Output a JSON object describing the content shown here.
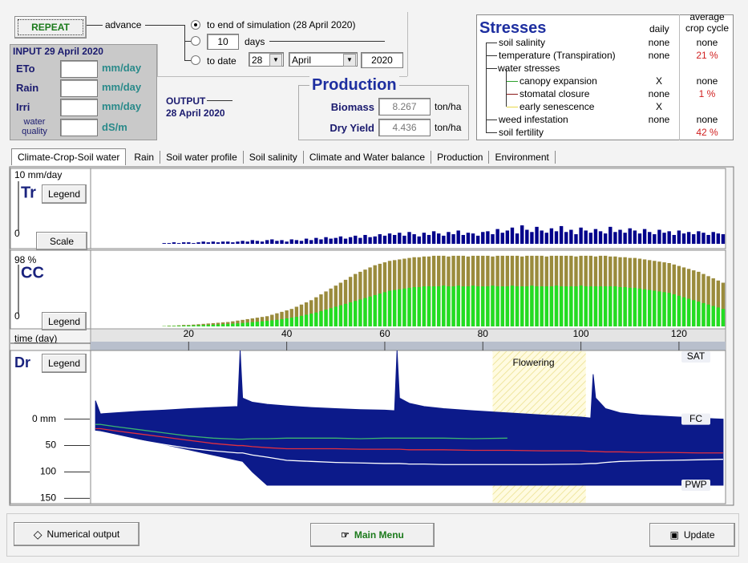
{
  "controls": {
    "repeat": "REPEAT",
    "advance": "advance",
    "options": [
      {
        "label": "to end of simulation (28 April 2020)"
      },
      {
        "value": "10",
        "label": "days"
      },
      {
        "label": "to date",
        "day": "28",
        "month": "April",
        "year": "2020"
      }
    ]
  },
  "input": {
    "title": "INPUT 29 April 2020",
    "rows": [
      {
        "label": "ETo",
        "unit": "mm/day"
      },
      {
        "label": "Rain",
        "unit": "mm/day"
      },
      {
        "label": "Irri",
        "unit": "mm/day"
      },
      {
        "label": "water quality",
        "unit": "dS/m"
      }
    ]
  },
  "output": {
    "title": "OUTPUT",
    "date": "28 April 2020"
  },
  "production": {
    "title": "Production",
    "rows": [
      {
        "label": "Biomass",
        "value": "8.267",
        "unit": "ton/ha"
      },
      {
        "label": "Dry Yield",
        "value": "4.436",
        "unit": "ton/ha"
      }
    ]
  },
  "stresses": {
    "title": "Stresses",
    "columns": [
      "daily",
      "average crop cycle"
    ],
    "rows": [
      {
        "label": "soil salinity",
        "daily": "none",
        "average": "none"
      },
      {
        "label": "temperature (Transpiration)",
        "daily": "none",
        "average": "21 %"
      },
      {
        "label": "water stresses"
      },
      {
        "label": "canopy expansion",
        "daily": "X",
        "average": "none"
      },
      {
        "label": "stomatal closure",
        "daily": "none",
        "average": "1 %"
      },
      {
        "label": "early senescence",
        "daily": "X"
      },
      {
        "label": "weed infestation",
        "daily": "none",
        "average": "none"
      },
      {
        "label": "soil fertility",
        "average": "42 %"
      }
    ]
  },
  "tabs": [
    "Climate-Crop-Soil water",
    "Rain",
    "Soil water profile",
    "Soil salinity",
    "Climate and Water balance",
    "Production",
    "Environment"
  ],
  "chart_data": [
    {
      "type": "bar",
      "title": "Tr",
      "legend_button": "Legend",
      "scale_button": "Scale",
      "x": [
        1,
        2,
        3,
        4,
        5,
        6,
        7,
        8,
        9,
        10,
        11,
        12,
        13,
        14,
        15,
        16,
        17,
        18,
        19,
        20,
        21,
        22,
        23,
        24,
        25,
        26,
        27,
        28,
        29,
        30,
        31,
        32,
        33,
        34,
        35,
        36,
        37,
        38,
        39,
        40,
        41,
        42,
        43,
        44,
        45,
        46,
        47,
        48,
        49,
        50,
        51,
        52,
        53,
        54,
        55,
        56,
        57,
        58,
        59,
        60,
        61,
        62,
        63,
        64,
        65,
        66,
        67,
        68,
        69,
        70,
        71,
        72,
        73,
        74,
        75,
        76,
        77,
        78,
        79,
        80,
        81,
        82,
        83,
        84,
        85,
        86,
        87,
        88,
        89,
        90,
        91,
        92,
        93,
        94,
        95,
        96,
        97,
        98,
        99,
        100,
        101,
        102,
        103,
        104,
        105,
        106,
        107,
        108,
        109,
        110,
        111,
        112,
        113,
        114,
        115,
        116,
        117,
        118,
        119,
        120,
        121,
        122,
        123,
        124,
        125,
        126,
        127,
        128,
        129
      ],
      "series": [
        {
          "color": "#00008b",
          "values": [
            0,
            0,
            0,
            0,
            0,
            0,
            0,
            0,
            0,
            0,
            0,
            0,
            0,
            0,
            0.1,
            0.1,
            0.2,
            0.1,
            0.2,
            0.2,
            0.1,
            0.2,
            0.3,
            0.2,
            0.3,
            0.2,
            0.3,
            0.3,
            0.2,
            0.3,
            0.4,
            0.3,
            0.5,
            0.4,
            0.3,
            0.5,
            0.6,
            0.4,
            0.5,
            0.3,
            0.6,
            0.5,
            0.4,
            0.7,
            0.5,
            0.8,
            0.6,
            0.9,
            0.7,
            0.8,
            1.0,
            0.7,
            0.9,
            1.1,
            0.8,
            1.2,
            0.9,
            1.0,
            1.3,
            1.1,
            1.4,
            1.2,
            1.5,
            1.1,
            1.6,
            1.3,
            1.0,
            1.5,
            1.2,
            1.7,
            1.4,
            1.1,
            1.6,
            1.3,
            1.8,
            1.2,
            1.5,
            1.4,
            1.1,
            1.6,
            1.7,
            1.3,
            2.0,
            1.5,
            1.8,
            2.2,
            1.4,
            2.5,
            1.9,
            1.6,
            2.3,
            1.8,
            1.5,
            2.1,
            1.7,
            2.4,
            1.6,
            1.9,
            1.3,
            2.2,
            1.8,
            1.5,
            2.0,
            1.7,
            1.4,
            2.3,
            1.6,
            1.9,
            1.5,
            2.1,
            1.8,
            1.4,
            2.0,
            1.6,
            1.3,
            1.9,
            1.5,
            1.7,
            1.2,
            1.8,
            1.4,
            1.6,
            1.3,
            1.7,
            1.5,
            1.2,
            1.6,
            1.4,
            1.3
          ]
        }
      ],
      "xlim": [
        0,
        129.5
      ],
      "ylim": [
        0,
        10
      ],
      "yticks": [
        0,
        {
          "value": 10,
          "label": "10 mm/day"
        }
      ]
    },
    {
      "type": "bar",
      "title": "CC",
      "legend_button": "Legend",
      "xlabel": "time (day)",
      "x": [
        1,
        2,
        3,
        4,
        5,
        6,
        7,
        8,
        9,
        10,
        11,
        12,
        13,
        14,
        15,
        16,
        17,
        18,
        19,
        20,
        21,
        22,
        23,
        24,
        25,
        26,
        27,
        28,
        29,
        30,
        31,
        32,
        33,
        34,
        35,
        36,
        37,
        38,
        39,
        40,
        41,
        42,
        43,
        44,
        45,
        46,
        47,
        48,
        49,
        50,
        51,
        52,
        53,
        54,
        55,
        56,
        57,
        58,
        59,
        60,
        61,
        62,
        63,
        64,
        65,
        66,
        67,
        68,
        69,
        70,
        71,
        72,
        73,
        74,
        75,
        76,
        77,
        78,
        79,
        80,
        81,
        82,
        83,
        84,
        85,
        86,
        87,
        88,
        89,
        90,
        91,
        92,
        93,
        94,
        95,
        96,
        97,
        98,
        99,
        100,
        101,
        102,
        103,
        104,
        105,
        106,
        107,
        108,
        109,
        110,
        111,
        112,
        113,
        114,
        115,
        116,
        117,
        118,
        119,
        120,
        121,
        122,
        123,
        124,
        125,
        126,
        127,
        128,
        129
      ],
      "series": [
        {
          "color": "#9a8b3c",
          "values": [
            0,
            0,
            0,
            0,
            0,
            0,
            0,
            0,
            0,
            0,
            0,
            0,
            0,
            0,
            0.5,
            1,
            1,
            1.5,
            2,
            2,
            2.5,
            3,
            3.5,
            4,
            4.5,
            5,
            5.5,
            6,
            7,
            8,
            9,
            10,
            11,
            12,
            13,
            14,
            16,
            18,
            20,
            22,
            24,
            27,
            30,
            33,
            36,
            40,
            44,
            48,
            52,
            56,
            60,
            64,
            68,
            72,
            75,
            78,
            81,
            84,
            86,
            88,
            90,
            91,
            92,
            93,
            94,
            95,
            95,
            96,
            96,
            97,
            97,
            97,
            96,
            97,
            97,
            97,
            96,
            97,
            97,
            97,
            97,
            96,
            97,
            97,
            97,
            97,
            97,
            96,
            97,
            97,
            97,
            97,
            96,
            97,
            97,
            97,
            97,
            97,
            96,
            97,
            97,
            97,
            96,
            97,
            97,
            96,
            96,
            95,
            95,
            94,
            94,
            93,
            92,
            91,
            90,
            89,
            88,
            87,
            85,
            83,
            81,
            79,
            77,
            75,
            72,
            69,
            66,
            63,
            60
          ]
        },
        {
          "color": "#22dd22",
          "values": [
            0,
            0,
            0,
            0,
            0,
            0,
            0,
            0,
            0,
            0,
            0,
            0,
            0,
            0,
            0.3,
            0.5,
            0.6,
            0.8,
            1,
            1.2,
            1.4,
            1.6,
            1.8,
            2,
            2.3,
            2.6,
            3,
            3.4,
            3.8,
            4.2,
            4.7,
            5.2,
            5.8,
            6.4,
            7,
            7.6,
            8.3,
            9,
            10,
            11,
            12,
            13,
            14.5,
            16,
            17.5,
            19,
            21,
            23,
            25,
            27,
            29,
            31,
            33,
            35,
            37,
            39,
            41,
            43,
            45,
            47,
            49,
            50,
            51,
            52,
            53,
            54,
            54,
            55,
            55,
            55,
            55,
            56,
            55,
            55,
            56,
            55,
            55,
            56,
            55,
            55,
            55,
            56,
            55,
            55,
            55,
            56,
            55,
            55,
            55,
            56,
            55,
            55,
            55,
            55,
            56,
            55,
            55,
            55,
            55,
            56,
            55,
            55,
            55,
            55,
            55,
            55,
            55,
            54,
            54,
            53,
            53,
            52,
            51,
            50,
            49,
            48,
            47,
            46,
            44,
            42,
            40,
            38,
            36,
            34,
            32,
            30,
            28,
            26,
            24
          ]
        }
      ],
      "xlim": [
        0,
        129.5
      ],
      "xticks": [
        20,
        40,
        60,
        80,
        100,
        120
      ],
      "ylim": [
        0,
        98
      ],
      "yticks": [
        0,
        {
          "value": 98,
          "label": "98 %"
        }
      ]
    },
    {
      "type": "area",
      "title": "Dr",
      "legend_button": "Legend",
      "x": [
        1,
        2,
        5,
        10,
        15,
        20,
        25,
        30,
        30.5,
        31,
        33,
        36,
        40,
        45,
        50,
        55,
        60,
        62,
        62.5,
        63,
        65,
        68,
        72,
        78,
        85,
        92,
        100,
        102,
        102.5,
        103,
        105,
        108,
        112,
        118,
        124,
        129
      ],
      "series": [
        {
          "type": "area",
          "color": "#0c1a8a",
          "values": [
            -35,
            -10,
            -12,
            -15,
            -17,
            -20,
            -22,
            -24,
            -130,
            -40,
            -32,
            -28,
            -25,
            -22,
            -20,
            -18,
            -17,
            -16,
            -130,
            -40,
            -30,
            -24,
            -20,
            -16,
            -12,
            -8,
            -4,
            -2,
            -85,
            -40,
            -20,
            -12,
            -8,
            -5,
            -2,
            0
          ]
        },
        {
          "type": "area",
          "color": "#0c1a8a",
          "values": [
            21,
            22,
            28,
            38,
            48,
            58,
            68,
            78,
            79,
            80,
            100,
            125,
            125,
            125,
            125,
            125,
            125,
            125,
            125,
            125,
            125,
            125,
            125,
            125,
            125,
            125,
            125,
            125,
            125,
            125,
            125,
            125,
            125,
            125,
            125,
            125
          ]
        },
        {
          "type": "line",
          "color": "#3cb371",
          "values": [
            10,
            10,
            14,
            20,
            26,
            32,
            36,
            38,
            38,
            38,
            37,
            37,
            36,
            36,
            36,
            37,
            36,
            36,
            36,
            36,
            36,
            36,
            36,
            37,
            36,
            null,
            null,
            null,
            null,
            null,
            null,
            null,
            null,
            null,
            null,
            null
          ]
        },
        {
          "type": "line",
          "color": "#e03040",
          "values": [
            18,
            18,
            22,
            28,
            34,
            40,
            46,
            50,
            50,
            50,
            52,
            54,
            56,
            56,
            56,
            57,
            57,
            57,
            57,
            57,
            58,
            58,
            58,
            59,
            59,
            60,
            60,
            61,
            61,
            61,
            62,
            62,
            63,
            63,
            64,
            64
          ]
        },
        {
          "type": "line",
          "color": "#ffffff",
          "values": [
            26,
            26,
            32,
            40,
            48,
            55,
            60,
            64,
            64,
            64,
            68,
            72,
            78,
            80,
            82,
            83,
            84,
            84,
            84,
            84,
            85,
            85,
            86,
            86,
            86,
            86,
            85,
            84,
            84,
            84,
            82,
            80,
            79,
            78,
            77,
            76
          ]
        }
      ],
      "levels": [
        {
          "label": "SAT",
          "value": -130
        },
        {
          "label": "FC",
          "value": 0
        },
        {
          "label": "PWP",
          "value": 125
        }
      ],
      "band": {
        "label": "Flowering",
        "start": 82,
        "end": 101
      },
      "xlim": [
        0,
        129.5
      ],
      "ylim": [
        160,
        -130
      ],
      "yticks": [
        {
          "value": 0,
          "label": "0 mm"
        },
        50,
        100,
        150
      ]
    }
  ],
  "buttons": [
    "Numerical output",
    "Main Menu",
    "Update"
  ]
}
